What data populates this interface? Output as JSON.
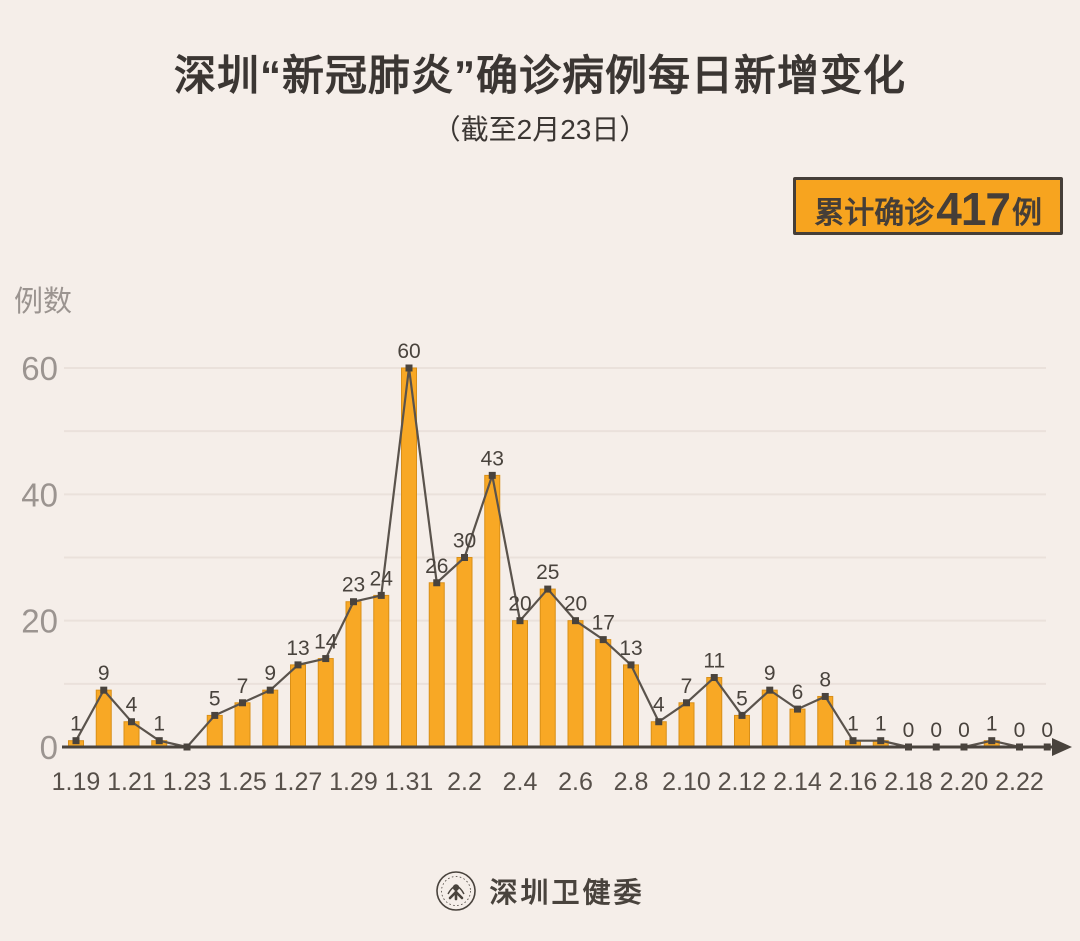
{
  "header": {
    "title": "深圳“新冠肺炎”确诊病例每日新增变化",
    "subtitle": "（截至2月23日）",
    "badge": {
      "prefix": "累计确诊",
      "number": "417",
      "suffix": "例"
    }
  },
  "chart_data": {
    "type": "bar",
    "line_overlay": true,
    "title": "深圳“新冠肺炎”确诊病例每日新增变化（截至2月23日）",
    "ylabel": "例数",
    "xlabel": "",
    "categories": [
      "1.19",
      "1.20",
      "1.21",
      "1.22",
      "1.23",
      "1.24",
      "1.25",
      "1.26",
      "1.27",
      "1.28",
      "1.29",
      "1.30",
      "1.31",
      "2.1",
      "2.2",
      "2.3",
      "2.4",
      "2.5",
      "2.6",
      "2.7",
      "2.8",
      "2.9",
      "2.10",
      "2.11",
      "2.12",
      "2.13",
      "2.14",
      "2.15",
      "2.16",
      "2.17",
      "2.18",
      "2.19",
      "2.20",
      "2.21",
      "2.22",
      "2.23"
    ],
    "values": [
      1,
      9,
      4,
      1,
      0,
      5,
      7,
      9,
      13,
      14,
      23,
      24,
      60,
      26,
      30,
      43,
      20,
      25,
      20,
      17,
      13,
      4,
      7,
      11,
      5,
      9,
      6,
      8,
      1,
      1,
      0,
      0,
      0,
      1,
      0,
      0
    ],
    "xtick_labels": [
      "1.19",
      "1.21",
      "1.23",
      "1.25",
      "1.27",
      "1.29",
      "1.31",
      "2.2",
      "2.4",
      "2.6",
      "2.8",
      "2.10",
      "2.12",
      "2.14",
      "2.16",
      "2.18",
      "2.20",
      "2.22"
    ],
    "yticks": [
      0,
      20,
      40,
      60
    ],
    "ylim": [
      0,
      60
    ],
    "grid": true,
    "gridline_step": 10,
    "hidden_value_labels": [
      "1.23"
    ],
    "legend": "none",
    "cumulative_total": 417
  },
  "colors": {
    "background": "#F5EEE9",
    "bar_fill": "#F8A825",
    "bar_border": "#D98F18",
    "line": "#5A534C",
    "marker": "#49433D",
    "axis": "#49433D",
    "gridline": "#EAE1DB",
    "ytick_text": "#9B9490",
    "xtick_text": "#57504A",
    "value_text": "#49433D",
    "title_text": "#3B3633",
    "badge_bg": "#F7A41F",
    "badge_border": "#453E38"
  },
  "footer": {
    "org": "深圳卫健委",
    "logo": "shenzhen-health-commission-seal"
  }
}
